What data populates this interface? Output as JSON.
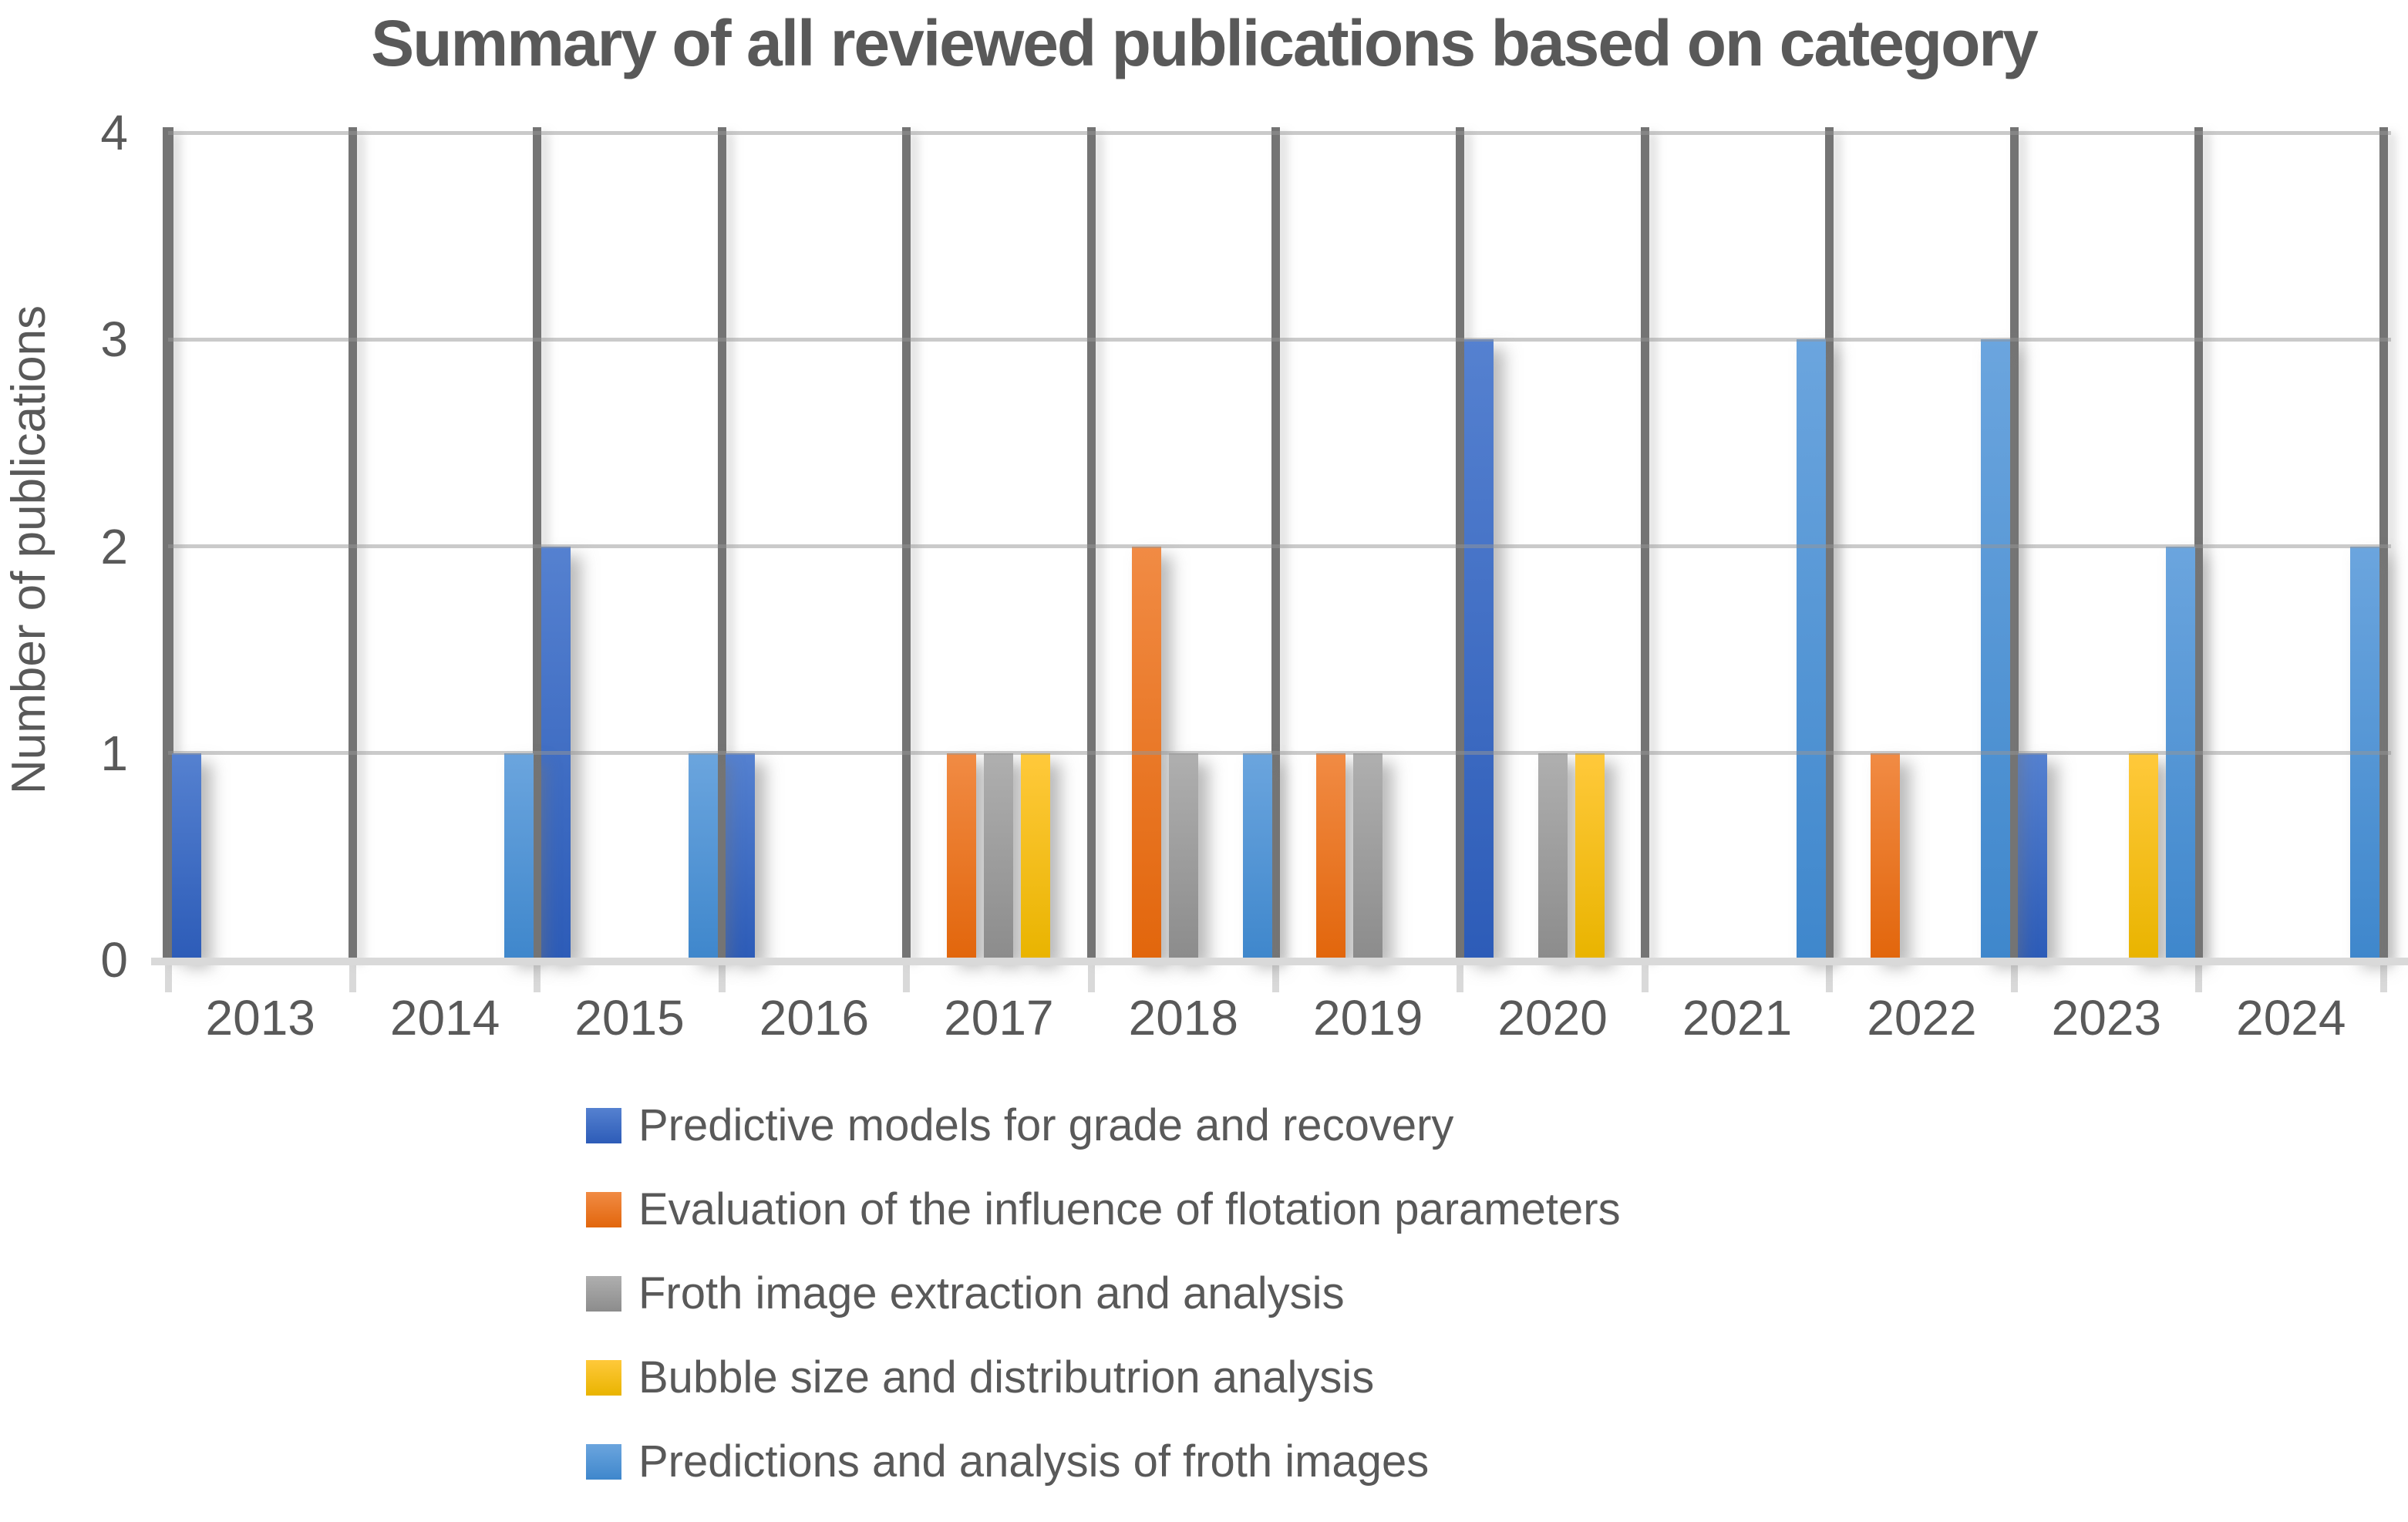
{
  "chart_data": {
    "type": "bar",
    "title": "Summary of all reviewed publications based on category",
    "ylabel": "Number of publications",
    "xlabel": "",
    "ylim": [
      0,
      4
    ],
    "yticks": [
      "0",
      "1",
      "2",
      "3",
      "4"
    ],
    "grid": {
      "horizontal": "light-gray",
      "vertical": "dark-gray"
    },
    "legend_position": "bottom-left",
    "categories": [
      "2013",
      "2014",
      "2015",
      "2016",
      "2017",
      "2018",
      "2019",
      "2020",
      "2021",
      "2022",
      "2023",
      "2024"
    ],
    "series": [
      {
        "name": "Predictive models for grade and recovery",
        "color": "#4472C4",
        "gradient_top": "#5581D0",
        "gradient_bottom": "#2D5CB8",
        "values": [
          1,
          0,
          2,
          1,
          0,
          0,
          0,
          3,
          0,
          0,
          1,
          0
        ]
      },
      {
        "name": "Evaluation of the influence of flotation parameters",
        "color": "#ED7D31",
        "gradient_top": "#F18B44",
        "gradient_bottom": "#E2660C",
        "values": [
          0,
          0,
          0,
          0,
          1,
          2,
          1,
          0,
          0,
          1,
          0,
          0
        ]
      },
      {
        "name": "Froth image extraction and analysis",
        "color": "#A5A5A5",
        "gradient_top": "#AFAFAF",
        "gradient_bottom": "#8C8C8C",
        "values": [
          0,
          0,
          0,
          0,
          1,
          1,
          1,
          1,
          0,
          0,
          0,
          0
        ]
      },
      {
        "name": "Bubble size and distributrion analysis",
        "color": "#FFC000",
        "gradient_top": "#FFC93B",
        "gradient_bottom": "#E9B400",
        "values": [
          0,
          0,
          0,
          0,
          1,
          0,
          0,
          1,
          0,
          0,
          1,
          0
        ]
      },
      {
        "name": "Predictions and analysis of froth images",
        "color": "#5B9BD5",
        "gradient_top": "#6BA5DE",
        "gradient_bottom": "#3F87CC",
        "values": [
          0,
          1,
          1,
          0,
          0,
          1,
          0,
          0,
          3,
          3,
          2,
          2
        ]
      }
    ]
  },
  "colors": {
    "text": "#595959",
    "grid_light": "#D9D9D9",
    "grid_light_over_bars": "rgba(150,150,150,0.5)",
    "grid_dark": "#747474",
    "background": "#FFFFFF"
  }
}
